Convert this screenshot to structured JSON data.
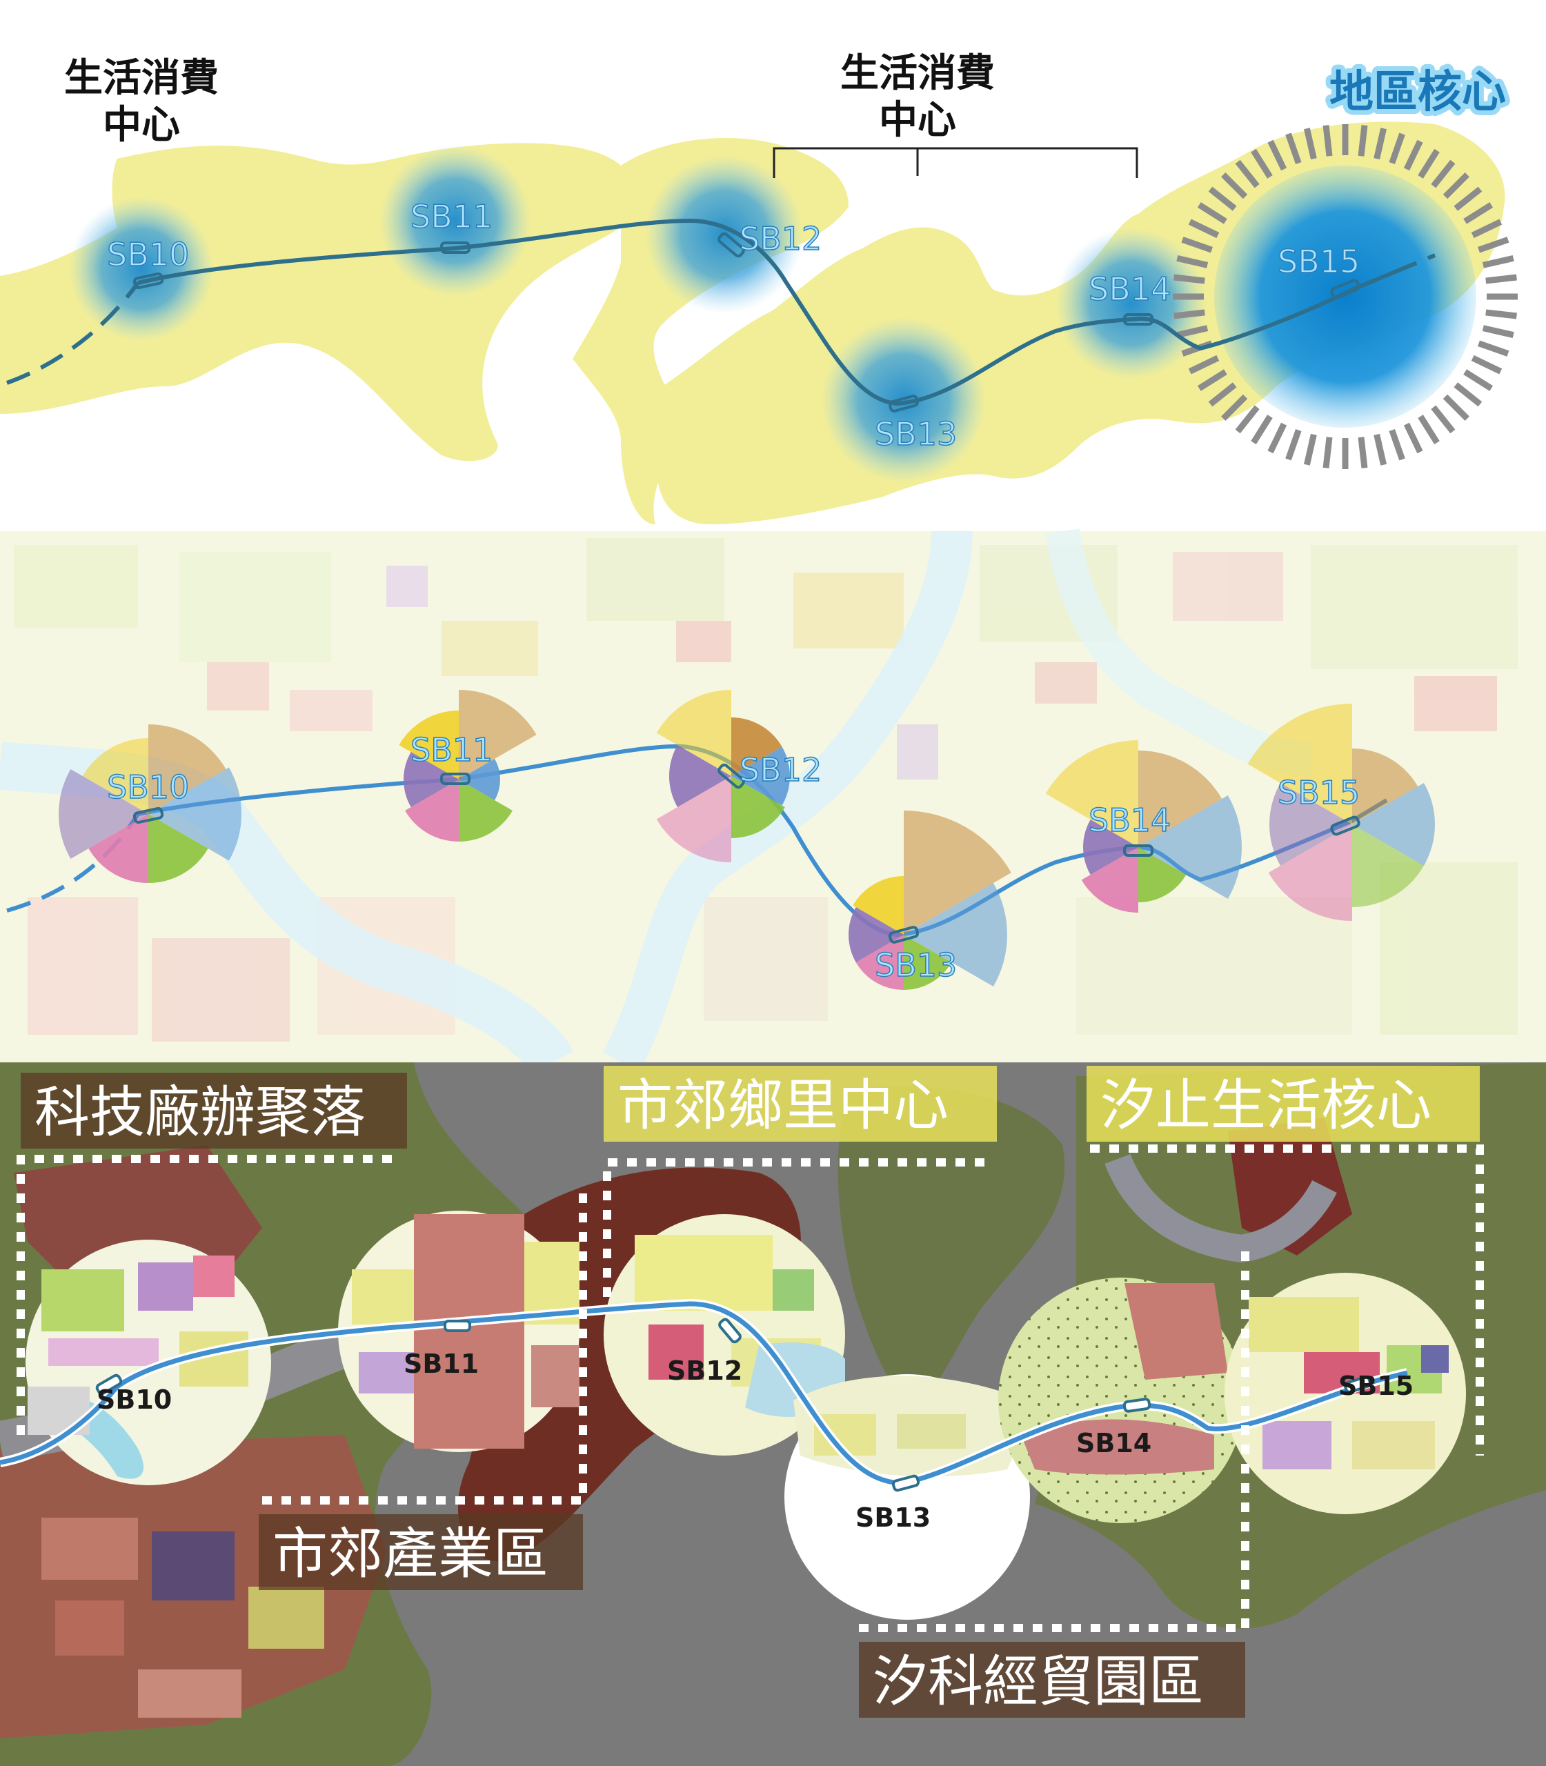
{
  "panel1": {
    "label_left_line1": "生活消費",
    "label_left_line2": "中心",
    "label_mid_line1": "生活消費",
    "label_mid_line2": "中心",
    "label_right": "地區核心",
    "stations": [
      "SB10",
      "SB11",
      "SB12",
      "SB13",
      "SB14",
      "SB15"
    ]
  },
  "panel2": {
    "stations": [
      "SB10",
      "SB11",
      "SB12",
      "SB13",
      "SB14",
      "SB15"
    ]
  },
  "panel3": {
    "zones": [
      "科技廠辦聚落",
      "市郊鄉里中心",
      "汐止生活核心",
      "市郊產業區",
      "汐科經貿園區"
    ],
    "stations": [
      "SB10",
      "SB11",
      "SB12",
      "SB13",
      "SB14",
      "SB15"
    ]
  },
  "colors": {
    "yellow_zone": "#f2ee97",
    "blue_glow": "#2a95d4",
    "route_line": "#2d6f8c",
    "route_blue": "#3f8fd0",
    "title_blue": "#1a78b8",
    "map_gray": "#7a7a7a"
  }
}
